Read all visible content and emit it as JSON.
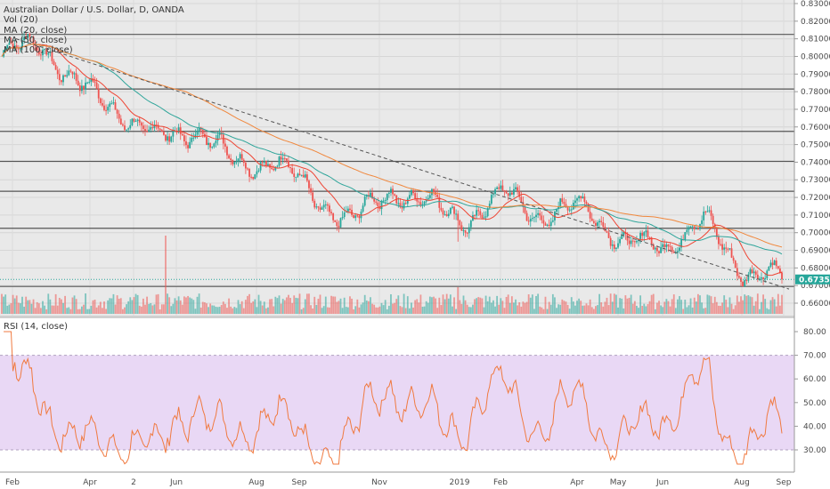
{
  "legend": {
    "title": "Australian Dollar / U.S. Dollar, D, OANDA",
    "vol": "Vol (20)",
    "ma20": "MA (20, close)",
    "ma50": "MA (50, close)",
    "ma100": "MA (100, close)"
  },
  "rsi_panel": {
    "label": "RSI (14, close)"
  },
  "price_tag": "0.67350",
  "colors": {
    "up": "#26a69a",
    "down": "#ef5350",
    "ma20": "#ee4433",
    "ma50": "#2fa59a",
    "ma100": "#f0873c",
    "rsi_line": "#f07a40",
    "rsi_band": "#e9d8f5",
    "pane_bg": "#e9e9e9",
    "price_tag_bg": "#26a69a"
  },
  "chart_data": {
    "type": "candlestick",
    "title": "Australian Dollar / U.S. Dollar, D, OANDA",
    "y_ticks": [
      "0.83000",
      "0.82000",
      "0.81000",
      "0.80000",
      "0.79000",
      "0.78000",
      "0.77000",
      "0.76000",
      "0.75000",
      "0.74000",
      "0.73000",
      "0.72000",
      "0.71000",
      "0.70000",
      "0.69000",
      "0.68000",
      "0.67000",
      "0.66000"
    ],
    "ylim": [
      0.655,
      0.832
    ],
    "x_ticks": [
      "Feb",
      "Apr",
      "2",
      "Jun",
      "Aug",
      "Sep",
      "Nov",
      "2019",
      "Feb",
      "Apr",
      "May",
      "Jun",
      "Aug",
      "Sep"
    ],
    "horizontal_levels": [
      0.8125,
      0.7815,
      0.7575,
      0.7405,
      0.7235,
      0.7025,
      0.6695
    ],
    "trendline": {
      "start": [
        "Feb 2018",
        0.81
      ],
      "end": [
        "Sep 2019",
        0.668
      ],
      "style": "dashed"
    },
    "close_anchors": [
      [
        "Jan 2018",
        0.8
      ],
      [
        "Feb 2018",
        0.808
      ],
      [
        "Mar 2018",
        0.782
      ],
      [
        "Apr 2018",
        0.77
      ],
      [
        "May 2018",
        0.752
      ],
      [
        "Jun 2018",
        0.76
      ],
      [
        "Jul 2018",
        0.738
      ],
      [
        "Aug 2018",
        0.742
      ],
      [
        "Sep 2018",
        0.72
      ],
      [
        "Oct 2018",
        0.706
      ],
      [
        "Nov 2018",
        0.725
      ],
      [
        "Dec 2018",
        0.715
      ],
      [
        "Jan 2019",
        0.708
      ],
      [
        "Feb 2019",
        0.722
      ],
      [
        "Mar 2019",
        0.708
      ],
      [
        "Apr 2019",
        0.716
      ],
      [
        "May 2019",
        0.692
      ],
      [
        "Jun 2019",
        0.694
      ],
      [
        "Jul 2019",
        0.706
      ],
      [
        "Aug 2019",
        0.679
      ],
      [
        "Sep 2019",
        0.6735
      ]
    ],
    "moving_averages": [
      "MA (20, close)",
      "MA (50, close)",
      "MA (100, close)"
    ],
    "volume_indicator": "Vol (20)",
    "last_price": 0.6735,
    "rsi": {
      "label": "RSI (14, close)",
      "y_ticks": [
        "80.00",
        "70.00",
        "60.00",
        "50.00",
        "40.00",
        "30.00"
      ],
      "ylim": [
        22,
        86
      ],
      "band": [
        30,
        70
      ],
      "last": 37.0
    }
  }
}
